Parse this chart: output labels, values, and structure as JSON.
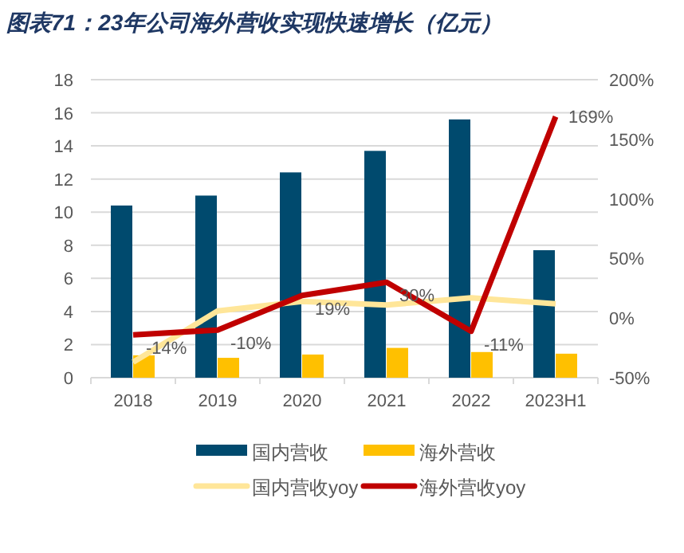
{
  "chart_data": {
    "type": "bar",
    "title": "图表71：23年公司海外营收实现快速增长（亿元）",
    "categories": [
      "2018",
      "2019",
      "2020",
      "2021",
      "2022",
      "2023H1"
    ],
    "series": [
      {
        "name": "国内营收",
        "color": "#004a6e",
        "values": [
          10.4,
          11.0,
          12.4,
          13.7,
          15.6,
          7.7
        ]
      },
      {
        "name": "海外营收",
        "color": "#ffc000",
        "values": [
          1.35,
          1.2,
          1.4,
          1.8,
          1.55,
          1.45
        ]
      },
      {
        "name": "国内营收yoy",
        "type": "line",
        "axis": "y2",
        "color": "#ffe699",
        "values": [
          -37,
          6,
          14,
          11,
          17,
          12
        ]
      },
      {
        "name": "海外营收yoy",
        "type": "line",
        "axis": "y2",
        "color": "#c00000",
        "values": [
          -14,
          -10,
          19,
          30,
          -11,
          169
        ],
        "value_labels": [
          "-14%",
          "-10%",
          "19%",
          "30%",
          "-11%",
          "169%"
        ]
      }
    ],
    "ylim": [
      0,
      18
    ],
    "yticks": [
      0,
      2,
      4,
      6,
      8,
      10,
      12,
      14,
      16,
      18
    ],
    "y2lim": [
      -50,
      200
    ],
    "y2ticks": [
      {
        "value": -50,
        "label": "-50%"
      },
      {
        "value": 0,
        "label": "0%"
      },
      {
        "value": 50,
        "label": "50%"
      },
      {
        "value": 100,
        "label": "100%"
      },
      {
        "value": 150,
        "label": "150%"
      },
      {
        "value": 200,
        "label": "200%"
      }
    ],
    "grid": "y",
    "legend": "bottom",
    "marker": "none",
    "line_style": "solid"
  }
}
